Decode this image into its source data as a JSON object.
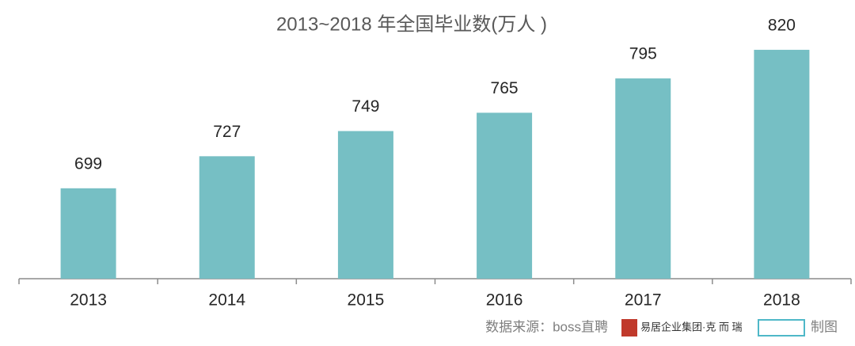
{
  "chart_data": {
    "type": "bar",
    "title": "2013~2018 年全国毕业数(万人 )",
    "categories": [
      "2013",
      "2014",
      "2015",
      "2016",
      "2017",
      "2018"
    ],
    "values": [
      699,
      727,
      749,
      765,
      795,
      820
    ],
    "color": "#76bfc4",
    "ylim": [
      620,
      840
    ]
  },
  "footer": {
    "source": "数据来源：boss直聘",
    "org": "易居企业集团·克 而 瑞",
    "suffix": "制图"
  }
}
